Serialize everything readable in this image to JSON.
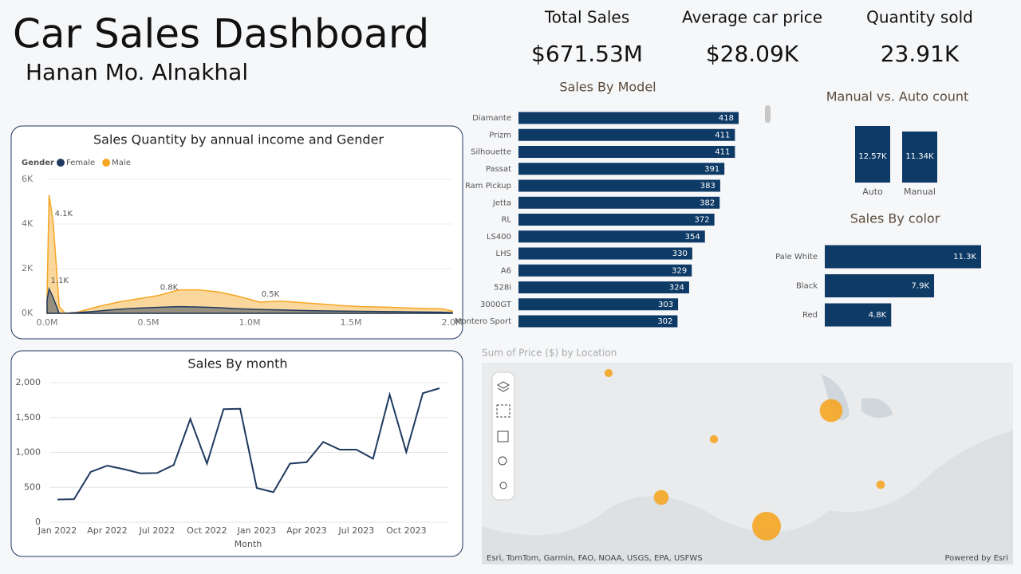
{
  "header": {
    "title": "Car Sales Dashboard",
    "subtitle": "Hanan Mo. Alnakhal"
  },
  "kpis": [
    {
      "label": "Total Sales",
      "value": "$671.53M"
    },
    {
      "label": "Average car price",
      "value": "$28.09K"
    },
    {
      "label": "Quantity sold",
      "value": "23.91K"
    }
  ],
  "chart_data": [
    {
      "type": "area",
      "title": "Sales Quantity by annual income and Gender",
      "legend_title": "Gender",
      "x": [
        0,
        10000,
        30000,
        60000,
        90000,
        150000,
        250000,
        350000,
        450000,
        550000,
        650000,
        750000,
        850000,
        950000,
        1050000,
        1150000,
        1250000,
        1350000,
        1450000,
        1550000,
        1650000,
        1750000,
        1850000,
        1950000,
        2000000
      ],
      "series": [
        {
          "name": "Female",
          "color": "#1f3a5f",
          "values": [
            600,
            1100,
            700,
            0,
            0,
            30,
            100,
            180,
            230,
            270,
            300,
            280,
            250,
            200,
            170,
            150,
            130,
            110,
            100,
            90,
            80,
            70,
            60,
            50,
            30
          ],
          "value_labels": [
            null,
            "1.1K",
            null,
            null,
            null,
            null,
            null,
            null,
            null,
            null,
            null,
            null,
            null,
            null,
            null,
            null,
            null,
            null,
            null,
            null,
            null,
            null,
            null,
            null,
            null
          ]
        },
        {
          "name": "Male",
          "color": "#f5a623",
          "values": [
            800,
            5300,
            4100,
            300,
            0,
            50,
            300,
            500,
            650,
            800,
            1050,
            1050,
            950,
            750,
            500,
            550,
            480,
            420,
            350,
            300,
            280,
            250,
            220,
            200,
            100
          ],
          "value_labels": [
            null,
            null,
            "4.1K",
            null,
            null,
            null,
            null,
            null,
            null,
            "0.8K",
            null,
            null,
            null,
            null,
            "0.5K",
            null,
            null,
            null,
            null,
            null,
            null,
            null,
            null,
            null,
            null
          ]
        }
      ],
      "xlim": [
        0,
        2000000
      ],
      "xticks": [
        {
          "value": 0,
          "label": "0.0M"
        },
        {
          "value": 500000,
          "label": "0.5M"
        },
        {
          "value": 1000000,
          "label": "1.0M"
        },
        {
          "value": 1500000,
          "label": "1.5M"
        },
        {
          "value": 2000000,
          "label": "2.0M"
        }
      ],
      "ylim": [
        0,
        6000
      ],
      "yticks": [
        {
          "value": 0,
          "label": "0K"
        },
        {
          "value": 2000,
          "label": "2K"
        },
        {
          "value": 4000,
          "label": "4K"
        },
        {
          "value": 6000,
          "label": "6K"
        }
      ]
    },
    {
      "type": "line",
      "title": "Sales By month",
      "x_label": "Month",
      "color": "#1f3a5f",
      "categories": [
        "Jan 2022",
        null,
        null,
        "Apr 2022",
        null,
        null,
        "Jul 2022",
        null,
        null,
        "Oct 2022",
        null,
        null,
        "Jan 2023",
        null,
        null,
        "Apr 2023",
        null,
        null,
        "Jul 2023",
        null,
        null,
        "Oct 2023",
        null,
        null
      ],
      "values": [
        325,
        330,
        720,
        810,
        760,
        700,
        705,
        820,
        1480,
        840,
        1620,
        1625,
        490,
        430,
        840,
        860,
        1150,
        1040,
        1040,
        910,
        1830,
        1005,
        1850,
        1920
      ],
      "ylim": [
        0,
        2000
      ],
      "yticks": [
        0,
        500,
        {
          "value": 1000,
          "label": "1,000"
        },
        {
          "value": 1500,
          "label": "1,500"
        },
        {
          "value": 2000,
          "label": "2,000"
        }
      ],
      "grid": true
    },
    {
      "type": "hbar",
      "title": "Sales By Model",
      "color": "#0e3a66",
      "categories": [
        "Diamante",
        "Prizm",
        "Silhouette",
        "Passat",
        "Ram Pickup",
        "Jetta",
        "RL",
        "LS400",
        "LHS",
        "A6",
        "528i",
        "3000GT",
        "Montero Sport"
      ],
      "values": [
        418,
        411,
        411,
        391,
        383,
        382,
        372,
        354,
        330,
        329,
        324,
        303,
        302
      ]
    },
    {
      "type": "column",
      "title": "Manual vs. Auto count",
      "color": "#0e3a66",
      "categories": [
        "Auto",
        "Manual"
      ],
      "values": [
        12570,
        11340
      ],
      "value_labels": [
        "12.57K",
        "11.34K"
      ]
    },
    {
      "type": "hbar",
      "title": "Sales By color",
      "color": "#0e3a66",
      "categories": [
        "Pale White",
        "Black",
        "Red"
      ],
      "values": [
        11300,
        7900,
        4800
      ],
      "value_labels": [
        "11.3K",
        "7.9K",
        "4.8K"
      ]
    },
    {
      "type": "map",
      "title": "Sum of Price ($) by Location",
      "color": "#f5a623",
      "values": [
        12,
        95,
        12,
        40,
        150,
        13
      ],
      "attribution": "Esri, TomTom, Garmin, FAO, NOAA, USGS, EPA, USFWS",
      "credit": "Powered by Esri"
    }
  ]
}
